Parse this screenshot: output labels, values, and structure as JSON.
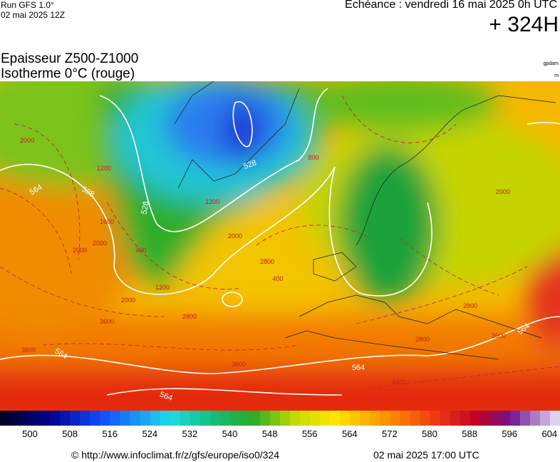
{
  "header": {
    "run": "Run GFS 1.0°",
    "date": "02 mai 2025 12Z",
    "echeance": "Echéance : vendredi 16 mai 2025 0h UTC",
    "lead": "+ 324H"
  },
  "title": {
    "line1": "Epaisseur Z500-Z1000",
    "line2": "Isotherme 0°C (rouge)",
    "unit1": "gpdam",
    "unit2": "m"
  },
  "map": {
    "contour_labels": [
      "528",
      "528",
      "528",
      "564",
      "564",
      "564",
      "564",
      "564"
    ],
    "isotherm_labels": [
      "2000",
      "2000",
      "2000",
      "1200",
      "1200",
      "1200",
      "400",
      "400",
      "800",
      "2800",
      "2800",
      "2800",
      "2800",
      "3600",
      "3600",
      "3600",
      "3600",
      "2000",
      "4400",
      "1600",
      "2000",
      "2000"
    ]
  },
  "colorbar": {
    "labels": [
      500,
      508,
      516,
      524,
      532,
      540,
      548,
      556,
      564,
      572,
      580,
      588,
      596,
      604
    ]
  },
  "footer": {
    "url": "© http://www.infoclimat.fr/z/gfs/europe/iso0/324",
    "generated": "02 mai 2025 17:00 UTC"
  }
}
